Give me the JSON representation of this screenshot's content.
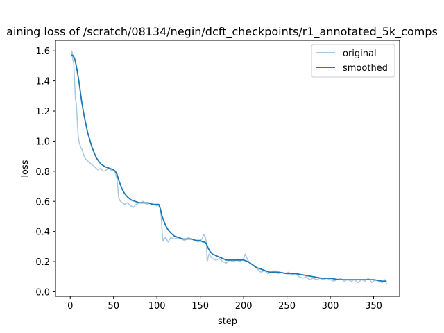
{
  "chart_data": {
    "type": "line",
    "title": "aining loss of /scratch/08134/negin/dcft_checkpoints/r1_annotated_5k_comps",
    "xlabel": "step",
    "ylabel": "loss",
    "xlim": [
      -17,
      380
    ],
    "ylim": [
      -0.03,
      1.67
    ],
    "xticks": [
      0,
      50,
      100,
      150,
      200,
      250,
      300,
      350
    ],
    "yticks": [
      0.0,
      0.2,
      0.4,
      0.6,
      0.8,
      1.0,
      1.2,
      1.4,
      1.6
    ],
    "grid": false,
    "legend_position": "top-right",
    "series": [
      {
        "name": "original",
        "color": "#a6c8e0",
        "x": [
          1,
          2,
          3,
          4,
          5,
          6,
          7,
          8,
          9,
          10,
          12,
          14,
          16,
          18,
          20,
          22,
          24,
          26,
          28,
          30,
          32,
          35,
          38,
          40,
          42,
          45,
          48,
          50,
          52,
          54,
          56,
          58,
          60,
          63,
          66,
          70,
          73,
          76,
          80,
          84,
          88,
          92,
          96,
          100,
          103,
          105,
          106,
          107,
          110,
          113,
          116,
          120,
          124,
          128,
          132,
          136,
          140,
          144,
          148,
          152,
          154,
          156,
          157,
          158,
          160,
          164,
          168,
          172,
          176,
          180,
          184,
          188,
          192,
          196,
          200,
          202,
          204,
          206,
          208,
          212,
          216,
          220,
          224,
          228,
          232,
          236,
          240,
          244,
          248,
          252,
          256,
          260,
          264,
          268,
          272,
          276,
          280,
          284,
          288,
          292,
          296,
          300,
          304,
          308,
          312,
          316,
          320,
          324,
          328,
          332,
          336,
          340,
          344,
          348,
          352,
          356,
          360,
          363,
          365
        ],
        "values": [
          1.56,
          1.6,
          1.54,
          1.52,
          1.4,
          1.28,
          1.25,
          1.15,
          1.05,
          1.0,
          0.96,
          0.94,
          0.9,
          0.88,
          0.87,
          0.86,
          0.85,
          0.84,
          0.83,
          0.82,
          0.81,
          0.82,
          0.8,
          0.8,
          0.81,
          0.82,
          0.8,
          0.81,
          0.79,
          0.75,
          0.62,
          0.6,
          0.59,
          0.58,
          0.59,
          0.57,
          0.56,
          0.58,
          0.59,
          0.6,
          0.58,
          0.59,
          0.58,
          0.57,
          0.58,
          0.5,
          0.4,
          0.34,
          0.36,
          0.33,
          0.36,
          0.35,
          0.36,
          0.35,
          0.34,
          0.36,
          0.35,
          0.34,
          0.33,
          0.35,
          0.38,
          0.36,
          0.33,
          0.2,
          0.25,
          0.22,
          0.21,
          0.22,
          0.2,
          0.19,
          0.21,
          0.2,
          0.21,
          0.2,
          0.22,
          0.25,
          0.22,
          0.2,
          0.19,
          0.17,
          0.15,
          0.13,
          0.14,
          0.12,
          0.13,
          0.14,
          0.12,
          0.13,
          0.12,
          0.13,
          0.11,
          0.12,
          0.1,
          0.09,
          0.1,
          0.08,
          0.09,
          0.08,
          0.09,
          0.08,
          0.09,
          0.08,
          0.07,
          0.08,
          0.09,
          0.07,
          0.08,
          0.07,
          0.08,
          0.06,
          0.08,
          0.07,
          0.09,
          0.06,
          0.08,
          0.07,
          0.06,
          0.08,
          0.05
        ]
      },
      {
        "name": "smoothed",
        "color": "#1f77b4",
        "x": [
          1,
          3,
          5,
          7,
          10,
          13,
          16,
          20,
          25,
          30,
          35,
          40,
          45,
          50,
          52,
          54,
          56,
          58,
          60,
          63,
          66,
          70,
          75,
          80,
          85,
          90,
          95,
          100,
          102,
          104,
          106,
          108,
          110,
          113,
          116,
          120,
          125,
          130,
          135,
          140,
          145,
          150,
          153,
          155,
          157,
          159,
          161,
          164,
          168,
          172,
          176,
          180,
          185,
          190,
          195,
          200,
          205,
          210,
          215,
          220,
          225,
          230,
          235,
          240,
          250,
          260,
          270,
          280,
          290,
          300,
          310,
          320,
          330,
          340,
          350,
          360,
          365
        ],
        "values": [
          1.57,
          1.57,
          1.55,
          1.5,
          1.4,
          1.27,
          1.17,
          1.06,
          0.96,
          0.89,
          0.85,
          0.83,
          0.82,
          0.81,
          0.8,
          0.78,
          0.74,
          0.71,
          0.68,
          0.65,
          0.63,
          0.61,
          0.6,
          0.59,
          0.59,
          0.59,
          0.58,
          0.58,
          0.58,
          0.55,
          0.5,
          0.47,
          0.44,
          0.41,
          0.39,
          0.37,
          0.36,
          0.35,
          0.35,
          0.35,
          0.34,
          0.34,
          0.33,
          0.33,
          0.32,
          0.29,
          0.27,
          0.25,
          0.24,
          0.23,
          0.22,
          0.21,
          0.21,
          0.21,
          0.21,
          0.21,
          0.2,
          0.18,
          0.16,
          0.15,
          0.14,
          0.13,
          0.13,
          0.13,
          0.12,
          0.12,
          0.11,
          0.1,
          0.09,
          0.09,
          0.08,
          0.08,
          0.08,
          0.08,
          0.08,
          0.07,
          0.07
        ]
      }
    ]
  }
}
